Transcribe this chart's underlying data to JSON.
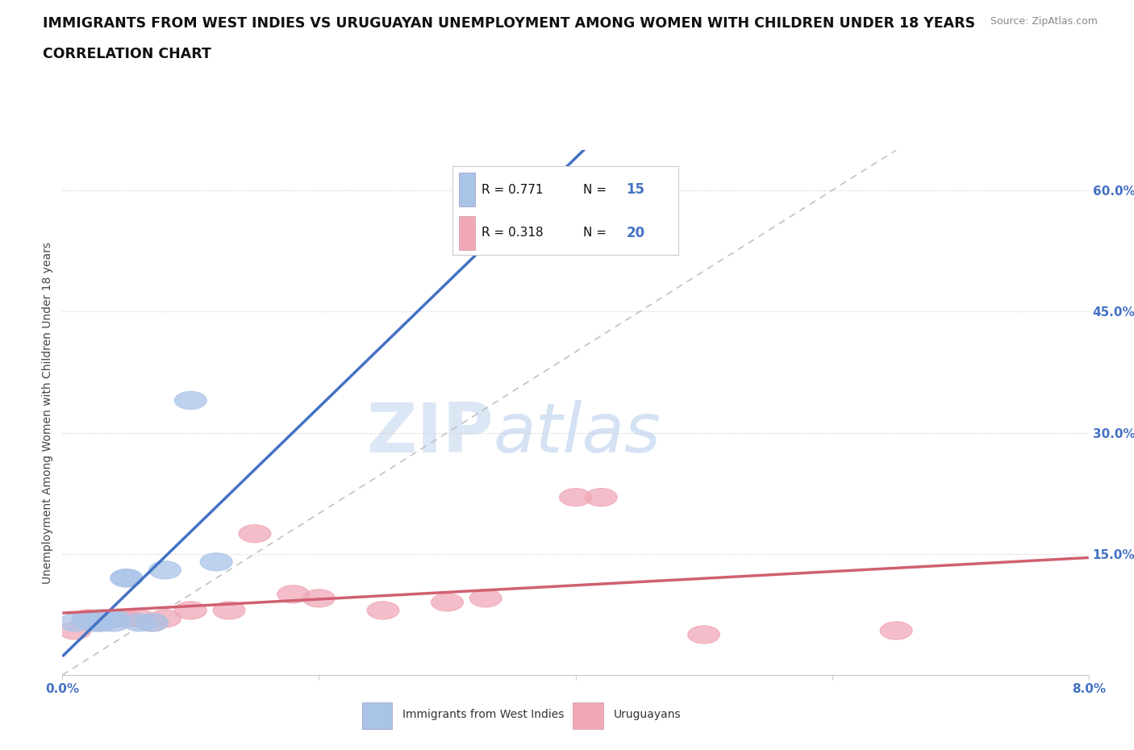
{
  "title_line1": "IMMIGRANTS FROM WEST INDIES VS URUGUAYAN UNEMPLOYMENT AMONG WOMEN WITH CHILDREN UNDER 18 YEARS",
  "title_line2": "CORRELATION CHART",
  "source_text": "Source: ZipAtlas.com",
  "ylabel": "Unemployment Among Women with Children Under 18 years",
  "xlim": [
    0.0,
    0.08
  ],
  "ylim": [
    0.0,
    0.65
  ],
  "xtick_vals": [
    0.0,
    0.02,
    0.04,
    0.06,
    0.08
  ],
  "xtick_labels": [
    "0.0%",
    "",
    "",
    "",
    "8.0%"
  ],
  "ytick_vals": [
    0.0,
    0.15,
    0.3,
    0.45,
    0.6
  ],
  "ytick_labels": [
    "",
    "15.0%",
    "30.0%",
    "45.0%",
    "60.0%"
  ],
  "watermark_zip": "ZIP",
  "watermark_atlas": "atlas",
  "R1": "0.771",
  "N1": "15",
  "R2": "0.318",
  "N2": "20",
  "color_blue": "#aac4e8",
  "color_pink": "#f0a8b8",
  "line_blue": "#4472c4",
  "line_pink": "#d06070",
  "line_gray": "#bbbbbb",
  "bg_color": "#ffffff",
  "grid_color": "#d0d0d0",
  "tick_color": "#4472c4",
  "west_indies_x": [
    0.001,
    0.002,
    0.0025,
    0.003,
    0.003,
    0.0035,
    0.004,
    0.004,
    0.005,
    0.005,
    0.006,
    0.007,
    0.008,
    0.01,
    0.012
  ],
  "west_indies_y": [
    0.065,
    0.068,
    0.065,
    0.065,
    0.07,
    0.07,
    0.065,
    0.07,
    0.12,
    0.12,
    0.065,
    0.065,
    0.13,
    0.34,
    0.14
  ],
  "uruguayans_x": [
    0.001,
    0.002,
    0.003,
    0.004,
    0.005,
    0.006,
    0.007,
    0.008,
    0.01,
    0.013,
    0.015,
    0.018,
    0.02,
    0.025,
    0.03,
    0.033,
    0.04,
    0.042,
    0.05,
    0.065
  ],
  "uruguayans_y": [
    0.055,
    0.07,
    0.065,
    0.07,
    0.07,
    0.07,
    0.065,
    0.07,
    0.08,
    0.08,
    0.175,
    0.1,
    0.095,
    0.08,
    0.09,
    0.095,
    0.22,
    0.22,
    0.05,
    0.055
  ],
  "label_west_indies": "Immigrants from West Indies",
  "label_uruguayans": "Uruguayans"
}
